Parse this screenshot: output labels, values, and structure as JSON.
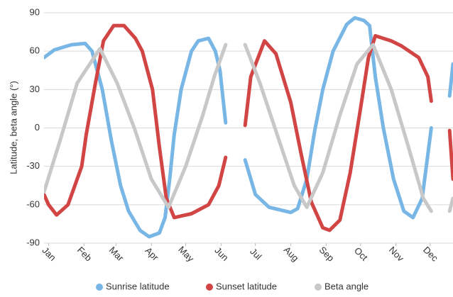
{
  "chart_data": {
    "type": "line",
    "y_label": "Latitude, beta angle (°)",
    "xlim": [
      -4,
      354
    ],
    "xticks": [
      {
        "value": 0,
        "label": "Jan"
      },
      {
        "value": 31,
        "label": "Feb"
      },
      {
        "value": 59,
        "label": "Mar"
      },
      {
        "value": 90,
        "label": "Apr"
      },
      {
        "value": 120,
        "label": "May"
      },
      {
        "value": 151,
        "label": "Jun"
      },
      {
        "value": 181,
        "label": "Jul"
      },
      {
        "value": 212,
        "label": "Aug"
      },
      {
        "value": 243,
        "label": "Sep"
      },
      {
        "value": 273,
        "label": "Oct"
      },
      {
        "value": 304,
        "label": "Nov"
      },
      {
        "value": 334,
        "label": "Dec"
      }
    ],
    "ylim": [
      -90,
      90
    ],
    "yticks": [
      -90,
      -60,
      -30,
      0,
      30,
      60,
      90
    ],
    "grid": true,
    "legend": "bottom",
    "series": [
      {
        "name": "Sunrise latitude",
        "color": "#78b6e6",
        "x": [
          -4,
          5,
          20,
          32,
          38,
          47,
          55,
          63,
          70,
          80,
          88,
          97,
          102,
          106,
          110,
          116,
          125,
          131,
          140,
          146,
          150,
          155,
          163,
          172,
          181,
          193,
          212,
          218,
          226,
          233,
          240,
          249,
          261,
          268,
          276,
          281,
          286,
          293,
          302,
          311,
          319,
          327,
          335,
          343,
          351,
          354
        ],
        "values": [
          55,
          61,
          65,
          66,
          60,
          30,
          -10,
          -45,
          -65,
          -80,
          -85,
          -82,
          -70,
          -40,
          -5,
          30,
          60,
          68,
          70,
          60,
          45,
          4,
          null,
          -25,
          -52,
          -62,
          -66,
          -63,
          -40,
          -2,
          30,
          60,
          81,
          86,
          84,
          80,
          40,
          0,
          -40,
          -65,
          -70,
          -55,
          0,
          null,
          25,
          50
        ]
      },
      {
        "name": "Sunset latitude",
        "color": "#d24545",
        "x": [
          -4,
          0,
          7,
          17,
          29,
          33,
          41,
          48,
          57,
          66,
          76,
          82,
          91,
          97,
          103,
          110,
          125,
          140,
          149,
          155,
          163,
          172,
          177,
          189,
          199,
          212,
          221,
          230,
          240,
          246,
          255,
          264,
          273,
          280,
          286,
          300,
          309,
          324,
          332,
          335,
          343,
          351,
          354
        ],
        "values": [
          -52,
          -60,
          -68,
          -60,
          -30,
          -5,
          35,
          68,
          80,
          80,
          70,
          60,
          30,
          -15,
          -55,
          -70,
          -67,
          -60,
          -45,
          -23,
          null,
          2,
          40,
          68,
          58,
          20,
          -20,
          -58,
          -78,
          -80,
          -72,
          -35,
          15,
          55,
          72,
          68,
          64,
          55,
          40,
          21,
          null,
          -2,
          -40
        ]
      },
      {
        "name": "Beta angle",
        "color": "#c8c8c8",
        "x": [
          -4,
          10,
          25,
          45,
          60,
          75,
          90,
          105,
          120,
          135,
          145,
          155,
          163,
          172,
          185,
          200,
          215,
          226,
          240,
          255,
          270,
          284,
          300,
          315,
          328,
          335,
          343,
          351,
          354
        ],
        "values": [
          -50,
          -10,
          35,
          62,
          35,
          0,
          -40,
          -62,
          -30,
          10,
          40,
          65,
          null,
          65,
          35,
          -5,
          -45,
          -62,
          -35,
          10,
          50,
          65,
          30,
          -15,
          -55,
          -65,
          null,
          -65,
          -55
        ]
      }
    ]
  }
}
